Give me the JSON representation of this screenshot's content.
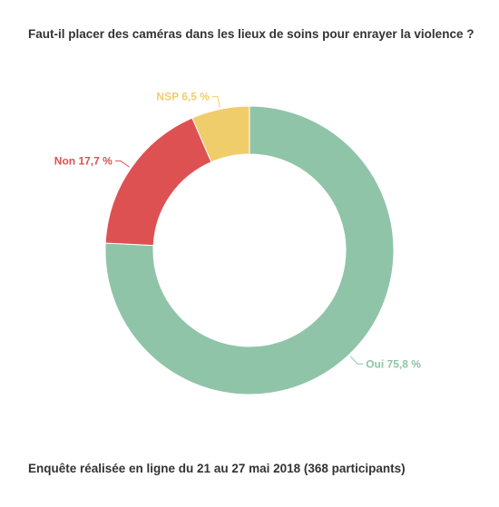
{
  "title": "Faut-il placer des caméras dans les lieux de soins pour enrayer la violence ?",
  "footer": "Enquête réalisée en ligne du 21 au 27 mai 2018  (368 participants)",
  "chart_data": {
    "type": "pie",
    "donut": true,
    "title": "Faut-il placer des caméras dans les lieux de soins pour enrayer la violence ?",
    "slices": [
      {
        "name": "Oui",
        "value": 75.8,
        "label": "Oui 75,8 %",
        "color": "#8fc4a8"
      },
      {
        "name": "Non",
        "value": 17.7,
        "label": "Non 17,7 %",
        "color": "#de5152"
      },
      {
        "name": "NSP",
        "value": 6.5,
        "label": "NSP 6,5 %",
        "color": "#f0cd6b"
      }
    ],
    "legend": "none"
  }
}
